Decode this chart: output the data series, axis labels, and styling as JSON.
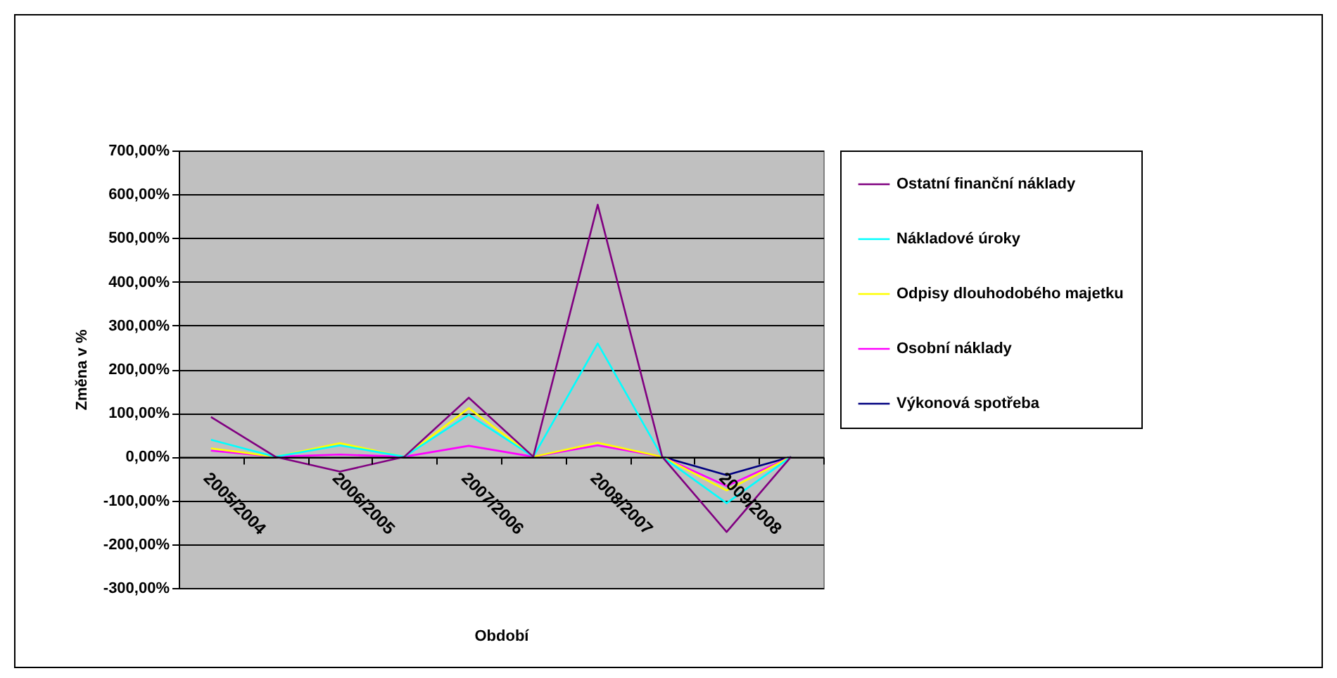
{
  "chart_data": {
    "type": "line",
    "xlabel": "Období",
    "ylabel": "Změna v %",
    "categories": [
      "2005/2004",
      null,
      "2006/2005",
      null,
      "2007/2006",
      null,
      "2008/2007",
      null,
      "2009/2008",
      null
    ],
    "series": [
      {
        "name": "Ostatní finanční náklady",
        "color": "#800080",
        "values": [
          91,
          0,
          -34,
          0,
          135,
          0,
          576,
          0,
          -172,
          0
        ]
      },
      {
        "name": "Nákladové úroky",
        "color": "#00ffff",
        "values": [
          39,
          0,
          26,
          0,
          96,
          0,
          259,
          0,
          -106,
          0
        ]
      },
      {
        "name": "Odpisy dlouhodobého majetku",
        "color": "#ffff00",
        "values": [
          19,
          0,
          31,
          0,
          111,
          0,
          32,
          0,
          -77,
          0
        ]
      },
      {
        "name": "Osobní náklady",
        "color": "#ff00ff",
        "values": [
          14,
          0,
          5,
          0,
          25,
          0,
          26,
          0,
          -67,
          0
        ]
      },
      {
        "name": "Výkonová spotřeba",
        "color": "#000080",
        "values": [
          null,
          null,
          null,
          null,
          null,
          null,
          null,
          0,
          -42,
          0
        ]
      }
    ],
    "ylim": [
      -300,
      700
    ],
    "yticks": [
      {
        "value": -300,
        "label": "-300,00%"
      },
      {
        "value": -200,
        "label": "-200,00%"
      },
      {
        "value": -100,
        "label": "-100,00%"
      },
      {
        "value": 0,
        "label": "0,00%"
      },
      {
        "value": 100,
        "label": "100,00%"
      },
      {
        "value": 200,
        "label": "200,00%"
      },
      {
        "value": 300,
        "label": "300,00%"
      },
      {
        "value": 400,
        "label": "400,00%"
      },
      {
        "value": 500,
        "label": "500,00%"
      },
      {
        "value": 600,
        "label": "600,00%"
      },
      {
        "value": 700,
        "label": "700,00%"
      }
    ],
    "grid": "y",
    "legend": "right",
    "marker": "none",
    "line_style": "solid"
  }
}
